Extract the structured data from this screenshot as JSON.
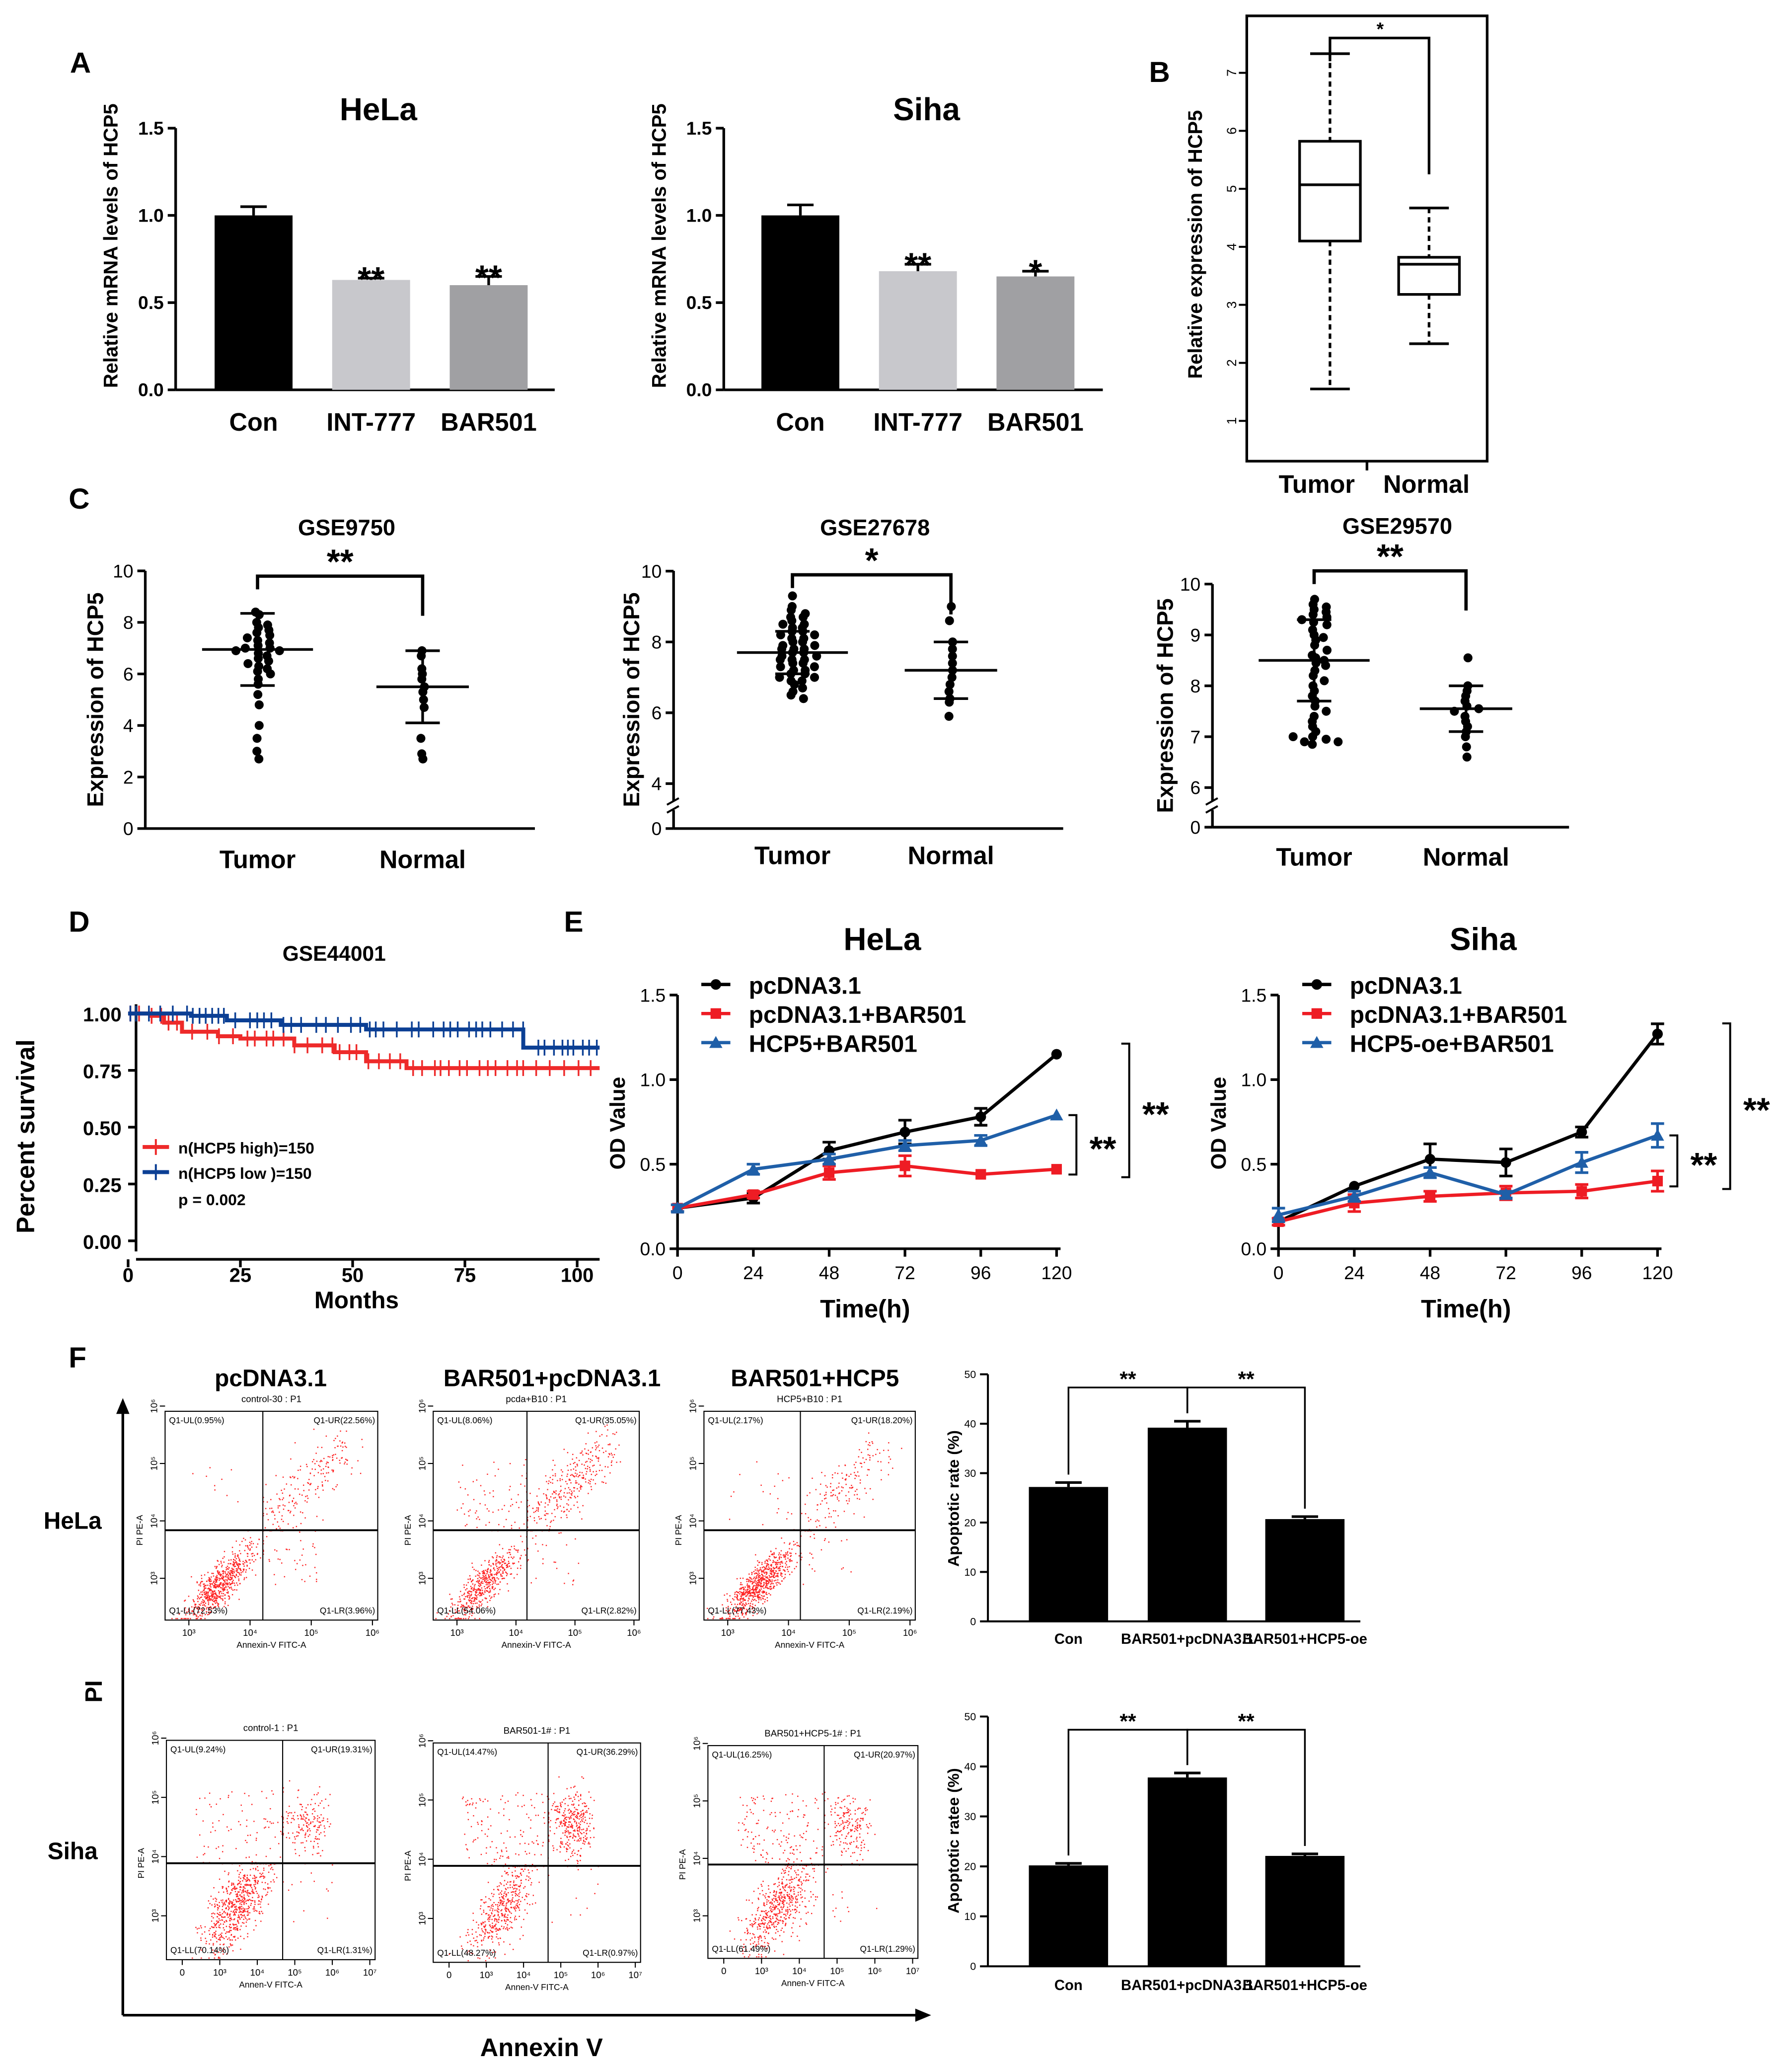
{
  "panel_labels": [
    "A",
    "B",
    "C",
    "D",
    "E",
    "F"
  ],
  "chart_data": [
    {
      "type": "bar",
      "panel": "A",
      "title": "HeLa",
      "ylabel": "Relative mRNA levels of HCP5",
      "categories": [
        "Con",
        "INT-777",
        "BAR501"
      ],
      "values": [
        1.0,
        0.63,
        0.6
      ],
      "errors": [
        0.05,
        0.01,
        0.05
      ],
      "colors": [
        "#000000",
        "#c8c8cc",
        "#a0a0a3"
      ],
      "significance": [
        "",
        "**",
        "**"
      ],
      "ylim": [
        0,
        1.5
      ],
      "yticks": [
        "0.0",
        "0.5",
        "1.0",
        "1.5"
      ]
    },
    {
      "type": "bar",
      "panel": "A",
      "title": "Siha",
      "ylabel": "Relative mRNA levels of HCP5",
      "categories": [
        "Con",
        "INT-777",
        "BAR501"
      ],
      "values": [
        1.0,
        0.68,
        0.65
      ],
      "errors": [
        0.06,
        0.04,
        0.03
      ],
      "colors": [
        "#000000",
        "#c8c8cc",
        "#a0a0a3"
      ],
      "significance": [
        "",
        "**",
        "*"
      ],
      "ylim": [
        0,
        1.5
      ],
      "yticks": [
        "0.0",
        "0.5",
        "1.0",
        "1.5"
      ]
    },
    {
      "type": "box",
      "panel": "B",
      "ylabel": "Relative expression of HCP5",
      "categories": [
        "Tumor",
        "Normal"
      ],
      "boxes": [
        {
          "min": 1.55,
          "q1": 4.1,
          "median": 5.07,
          "q3": 5.82,
          "max": 7.33
        },
        {
          "min": 2.33,
          "q1": 3.18,
          "median": 3.7,
          "q3": 3.82,
          "max": 4.67
        }
      ],
      "significance": "*",
      "yticks": [
        "1",
        "2",
        "3",
        "4",
        "5",
        "6",
        "7"
      ]
    },
    {
      "type": "scatter",
      "panel": "C",
      "title": "GSE9750",
      "ylabel": "Expression of HCP5",
      "categories": [
        "Tumor",
        "Normal"
      ],
      "significance": "**",
      "yticks": [
        "0",
        "2",
        "4",
        "6",
        "8",
        "10"
      ],
      "axis_break": false,
      "groups": [
        {
          "mean": 6.95,
          "sd": 1.4,
          "values": [
            8.4,
            8.3,
            8.0,
            7.9,
            7.8,
            7.7,
            7.6,
            7.5,
            7.4,
            7.3,
            7.2,
            7.1,
            7.0,
            7.0,
            6.9,
            6.9,
            6.8,
            6.7,
            6.6,
            6.5,
            6.4,
            6.3,
            6.2,
            6.1,
            6.0,
            5.8,
            5.6,
            5.2,
            4.8,
            4.0,
            3.5,
            3.0,
            2.7
          ]
        },
        {
          "mean": 5.5,
          "sd": 1.4,
          "values": [
            6.9,
            6.7,
            6.2,
            6.0,
            5.8,
            5.5,
            5.3,
            5.0,
            4.7,
            3.5,
            2.9,
            2.7
          ]
        }
      ]
    },
    {
      "type": "scatter",
      "panel": "C",
      "title": "GSE27678",
      "ylabel": "Expression of HCP5",
      "categories": [
        "Tumor",
        "Normal"
      ],
      "significance": "*",
      "yticks": [
        "0",
        "4",
        "6",
        "8",
        "10"
      ],
      "axis_break": true,
      "groups": [
        {
          "mean": 7.7,
          "sd": 0.6,
          "values": [
            9.3,
            9.0,
            8.9,
            8.8,
            8.7,
            8.7,
            8.6,
            8.5,
            8.5,
            8.4,
            8.4,
            8.3,
            8.3,
            8.2,
            8.2,
            8.1,
            8.1,
            8.0,
            8.0,
            7.9,
            7.9,
            7.8,
            7.8,
            7.8,
            7.7,
            7.7,
            7.6,
            7.6,
            7.5,
            7.5,
            7.5,
            7.4,
            7.4,
            7.3,
            7.3,
            7.2,
            7.2,
            7.1,
            7.1,
            7.0,
            7.0,
            6.9,
            6.9,
            6.8,
            6.7,
            6.6,
            6.5,
            6.4
          ]
        },
        {
          "mean": 7.2,
          "sd": 0.8,
          "values": [
            9.0,
            8.6,
            8.0,
            7.8,
            7.6,
            7.4,
            7.2,
            7.0,
            6.8,
            6.6,
            6.4,
            6.3,
            5.9
          ]
        }
      ]
    },
    {
      "type": "scatter",
      "panel": "C",
      "title": "GSE29570",
      "ylabel": "Expression of HCP5",
      "categories": [
        "Tumor",
        "Normal"
      ],
      "significance": "**",
      "yticks": [
        "0",
        "6",
        "7",
        "8",
        "9",
        "10"
      ],
      "axis_break": true,
      "groups": [
        {
          "mean": 8.5,
          "sd": 0.8,
          "values": [
            9.7,
            9.6,
            9.55,
            9.5,
            9.45,
            9.4,
            9.35,
            9.3,
            9.25,
            9.2,
            9.1,
            9.0,
            8.95,
            8.9,
            8.8,
            8.7,
            8.6,
            8.55,
            8.5,
            8.45,
            8.4,
            8.3,
            8.2,
            8.1,
            8.0,
            7.9,
            7.8,
            7.7,
            7.6,
            7.5,
            7.4,
            7.3,
            7.2,
            7.1,
            7.0,
            6.95,
            6.9,
            6.85,
            6.9,
            7.0
          ]
        },
        {
          "mean": 7.55,
          "sd": 0.45,
          "values": [
            8.55,
            8.0,
            7.9,
            7.8,
            7.7,
            7.6,
            7.55,
            7.5,
            7.4,
            7.3,
            7.2,
            7.1,
            7.0,
            6.8,
            6.6
          ]
        }
      ]
    },
    {
      "type": "line",
      "subtype": "kaplan-meier",
      "panel": "D",
      "title": "GSE44001",
      "xlabel": "Months",
      "ylabel": "Percent survival",
      "xticks": [
        "0",
        "25",
        "50",
        "75",
        "100"
      ],
      "yticks": [
        "0.00",
        "0.25",
        "0.50",
        "0.75",
        "1.00"
      ],
      "xlim": [
        0,
        105
      ],
      "ylim": [
        0,
        1
      ],
      "series": [
        {
          "name": "n(HCP5 high)=150",
          "color": "#ee2a2a",
          "steps": [
            [
              0,
              1.0
            ],
            [
              5,
              0.99
            ],
            [
              8,
              0.96
            ],
            [
              12,
              0.92
            ],
            [
              20,
              0.9
            ],
            [
              25,
              0.89
            ],
            [
              37,
              0.86
            ],
            [
              46,
              0.83
            ],
            [
              53,
              0.79
            ],
            [
              62,
              0.76
            ],
            [
              105,
              0.76
            ]
          ]
        },
        {
          "name": "n(HCP5 low )=150",
          "color": "#0b3f94",
          "steps": [
            [
              0,
              1.0
            ],
            [
              14,
              0.99
            ],
            [
              22,
              0.97
            ],
            [
              34,
              0.95
            ],
            [
              53,
              0.93
            ],
            [
              88,
              0.93
            ],
            [
              88,
              0.85
            ],
            [
              105,
              0.85
            ]
          ]
        }
      ],
      "pvalue": "p = 0.002"
    },
    {
      "type": "line",
      "panel": "E",
      "title": "HeLa",
      "xlabel": "Time(h)",
      "ylabel": "OD Value",
      "x": [
        0,
        24,
        48,
        72,
        96,
        120
      ],
      "xticks": [
        "0",
        "24",
        "48",
        "72",
        "96",
        "120"
      ],
      "yticks": [
        "0.0",
        "0.5",
        "1.0",
        "1.5"
      ],
      "ylim": [
        0,
        1.5
      ],
      "series": [
        {
          "name": "pcDNA3.1",
          "color": "#000000",
          "marker": "circle",
          "values": [
            0.24,
            0.3,
            0.58,
            0.69,
            0.78,
            1.15
          ],
          "errors": [
            0.02,
            0.03,
            0.05,
            0.07,
            0.05,
            0.01
          ]
        },
        {
          "name": "pcDNA3.1+BAR501",
          "color": "#ee1c24",
          "marker": "square",
          "values": [
            0.24,
            0.32,
            0.45,
            0.49,
            0.44,
            0.47
          ],
          "errors": [
            0.02,
            0.02,
            0.04,
            0.06,
            0.01,
            0.01
          ]
        },
        {
          "name": "HCP5+BAR501",
          "color": "#1f5fa8",
          "marker": "triangle",
          "values": [
            0.24,
            0.47,
            0.53,
            0.61,
            0.64,
            0.79
          ],
          "errors": [
            0.02,
            0.03,
            0.03,
            0.03,
            0.03,
            0.01
          ]
        }
      ],
      "brackets": [
        {
          "from": 0,
          "to": 1,
          "label": "**"
        },
        {
          "from": 2,
          "to": 1,
          "label": "**"
        }
      ]
    },
    {
      "type": "line",
      "panel": "E",
      "title": "Siha",
      "xlabel": "Time(h)",
      "ylabel": "OD Value",
      "x": [
        0,
        24,
        48,
        72,
        96,
        120
      ],
      "xticks": [
        "0",
        "24",
        "48",
        "72",
        "96",
        "120"
      ],
      "yticks": [
        "0.0",
        "0.5",
        "1.0",
        "1.5"
      ],
      "ylim": [
        0,
        1.5
      ],
      "series": [
        {
          "name": "pcDNA3.1",
          "color": "#000000",
          "marker": "circle",
          "values": [
            0.16,
            0.37,
            0.53,
            0.51,
            0.69,
            1.27
          ],
          "errors": [
            0.02,
            0.01,
            0.09,
            0.08,
            0.03,
            0.06
          ]
        },
        {
          "name": "pcDNA3.1+BAR501",
          "color": "#ee1c24",
          "marker": "square",
          "values": [
            0.16,
            0.27,
            0.31,
            0.33,
            0.34,
            0.4
          ],
          "errors": [
            0.02,
            0.05,
            0.03,
            0.04,
            0.04,
            0.06
          ]
        },
        {
          "name": "HCP5-oe+BAR501",
          "color": "#1f5fa8",
          "marker": "triangle",
          "values": [
            0.2,
            0.31,
            0.45,
            0.32,
            0.51,
            0.67
          ],
          "errors": [
            0.04,
            0.03,
            0.03,
            0.02,
            0.06,
            0.07
          ]
        }
      ],
      "brackets": [
        {
          "from": 0,
          "to": 1,
          "label": "**"
        },
        {
          "from": 2,
          "to": 1,
          "label": "**"
        }
      ]
    },
    {
      "type": "bar",
      "panel": "F",
      "ylabel": "Apoptotic rate (%)",
      "categories": [
        "Con",
        "BAR501+pcDNA3.1",
        "BAR501+HCP5-oe"
      ],
      "values": [
        27.2,
        39.2,
        20.7
      ],
      "errors": [
        0.9,
        1.3,
        0.5
      ],
      "ylim": [
        0,
        50
      ],
      "yticks": [
        "0",
        "10",
        "20",
        "30",
        "40",
        "50"
      ],
      "comparisons": [
        {
          "pair": [
            0,
            1
          ],
          "label": "**"
        },
        {
          "pair": [
            1,
            2
          ],
          "label": "**"
        }
      ]
    },
    {
      "type": "bar",
      "panel": "F",
      "ylabel": "Apoptotic ratee (%)",
      "categories": [
        "Con",
        "BAR501+pcDNA3.1",
        "BAR501+HCP5-oe"
      ],
      "values": [
        20.2,
        37.8,
        22.1
      ],
      "errors": [
        0.4,
        0.9,
        0.4
      ],
      "ylim": [
        0,
        50
      ],
      "yticks": [
        "0",
        "10",
        "20",
        "30",
        "40",
        "50"
      ],
      "comparisons": [
        {
          "pair": [
            0,
            1
          ],
          "label": "**"
        },
        {
          "pair": [
            1,
            2
          ],
          "label": "**"
        }
      ]
    },
    {
      "type": "scatter",
      "subtype": "flow-cytometry",
      "panel": "F",
      "column_headers": [
        "pcDNA3.1",
        "BAR501+pcDNA3.1",
        "BAR501+HCP5"
      ],
      "row_labels": [
        "HeLa",
        "Siha"
      ],
      "y_axis_title": "PI",
      "x_axis_title": "Annexin V",
      "plots": [
        {
          "row": 0,
          "title": "control-30 : P1",
          "xlabel": "Annexin-V FITC-A",
          "ylabel": "PI PE-A",
          "quadrants": {
            "UL": "Q1-UL(0.95%)",
            "UR": "Q1-UR(22.56%)",
            "LL": "Q1-LL(72.53%)",
            "LR": "Q1-LR(3.96%)"
          },
          "percent": {
            "UL": 0.95,
            "UR": 22.56,
            "LL": 72.53,
            "LR": 3.96
          },
          "xticks": [
            "10³",
            "10⁴",
            "10⁵",
            "10⁶"
          ],
          "yticks": [
            "10³",
            "10⁴",
            "10⁵",
            "10⁶"
          ]
        },
        {
          "row": 0,
          "title": "pcda+B10 : P1",
          "xlabel": "Annexin-V FITC-A",
          "ylabel": "PI PE-A",
          "quadrants": {
            "UL": "Q1-UL(8.06%)",
            "UR": "Q1-UR(35.05%)",
            "LL": "Q1-LL(54.06%)",
            "LR": "Q1-LR(2.82%)"
          },
          "percent": {
            "UL": 8.06,
            "UR": 35.05,
            "LL": 54.06,
            "LR": 2.82
          },
          "xticks": [
            "10³",
            "10⁴",
            "10⁵",
            "10⁶"
          ],
          "yticks": [
            "10³",
            "10⁴",
            "10⁵",
            "10⁶"
          ]
        },
        {
          "row": 0,
          "title": "HCP5+B10 : P1",
          "xlabel": "Annexin-V FITC-A",
          "ylabel": "PI PE-A",
          "quadrants": {
            "UL": "Q1-UL(2.17%)",
            "UR": "Q1-UR(18.20%)",
            "LL": "Q1-LL(77.43%)",
            "LR": "Q1-LR(2.19%)"
          },
          "percent": {
            "UL": 2.17,
            "UR": 18.2,
            "LL": 77.43,
            "LR": 2.19
          },
          "xticks": [
            "10³",
            "10⁴",
            "10⁵",
            "10⁶"
          ],
          "yticks": [
            "10³",
            "10⁴",
            "10⁵",
            "10⁶"
          ]
        },
        {
          "row": 1,
          "title": "control-1 : P1",
          "xlabel": "Annen-V FITC-A",
          "ylabel": "PI PE-A",
          "quadrants": {
            "UL": "Q1-UL(9.24%)",
            "UR": "Q1-UR(19.31%)",
            "LL": "Q1-LL(70.14%)",
            "LR": "Q1-LR(1.31%)"
          },
          "percent": {
            "UL": 9.24,
            "UR": 19.31,
            "LL": 70.14,
            "LR": 1.31
          },
          "xticks": [
            "0",
            "10³",
            "10⁴",
            "10⁵",
            "10⁶",
            "10⁷"
          ],
          "yticks": [
            "10³",
            "10⁴",
            "10⁵",
            "10⁶"
          ]
        },
        {
          "row": 1,
          "title": "BAR501-1# : P1",
          "xlabel": "Annen-V FITC-A",
          "ylabel": "PI PE-A",
          "quadrants": {
            "UL": "Q1-UL(14.47%)",
            "UR": "Q1-UR(36.29%)",
            "LL": "Q1-LL(48.27%)",
            "LR": "Q1-LR(0.97%)"
          },
          "percent": {
            "UL": 14.47,
            "UR": 36.29,
            "LL": 48.27,
            "LR": 0.97
          },
          "xticks": [
            "0",
            "10³",
            "10⁴",
            "10⁵",
            "10⁶",
            "10⁷"
          ],
          "yticks": [
            "10³",
            "10⁴",
            "10⁵",
            "10⁶"
          ]
        },
        {
          "row": 1,
          "title": "BAR501+HCP5-1# : P1",
          "xlabel": "Annen-V FITC-A",
          "ylabel": "PI PE-A",
          "quadrants": {
            "UL": "Q1-UL(16.25%)",
            "UR": "Q1-UR(20.97%)",
            "LL": "Q1-LL(61.49%)",
            "LR": "Q1-LR(1.29%)"
          },
          "percent": {
            "UL": 16.25,
            "UR": 20.97,
            "LL": 61.49,
            "LR": 1.29
          },
          "xticks": [
            "0",
            "10³",
            "10⁴",
            "10⁵",
            "10⁶",
            "10⁷"
          ],
          "yticks": [
            "10³",
            "10⁴",
            "10⁵",
            "10⁶"
          ]
        }
      ]
    }
  ]
}
